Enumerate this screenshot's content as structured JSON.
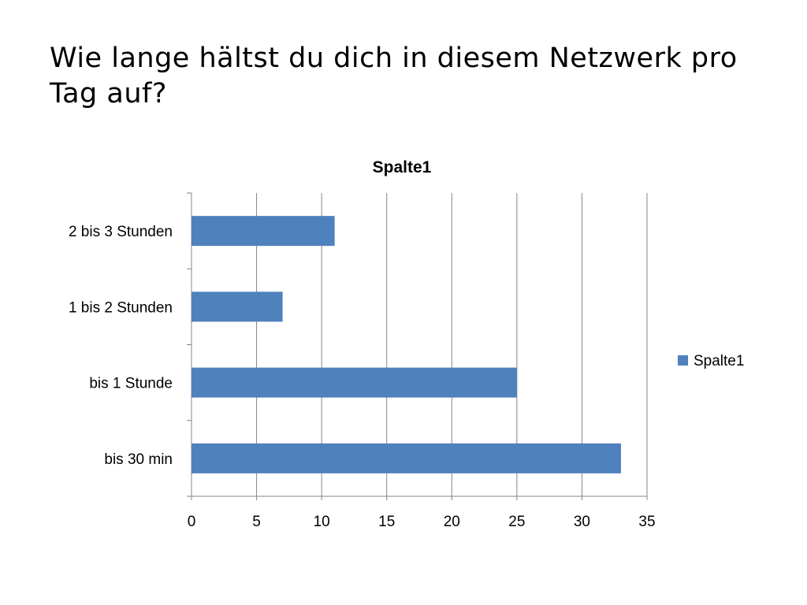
{
  "slide": {
    "title": "Wie lange hältst du dich in diesem Netzwerk pro Tag auf?"
  },
  "chart_data": {
    "type": "bar",
    "orientation": "horizontal",
    "title": "Spalte1",
    "categories": [
      "bis 30 min",
      "bis 1 Stunde",
      "1 bis 2 Stunden",
      "2 bis 3 Stunden"
    ],
    "series": [
      {
        "name": "Spalte1",
        "values": [
          33,
          25,
          7,
          11
        ],
        "color": "#4F81BD"
      }
    ],
    "xlim": [
      0,
      35
    ],
    "xticks": [
      0,
      5,
      10,
      15,
      20,
      25,
      30,
      35
    ],
    "xlabel": "",
    "ylabel": "",
    "grid": "vertical",
    "legend": "right"
  }
}
